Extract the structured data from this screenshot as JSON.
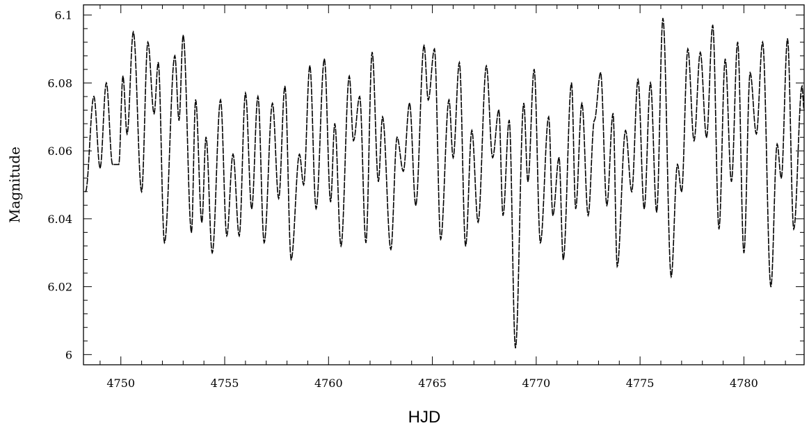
{
  "chart_data": {
    "type": "line",
    "title": "",
    "xlabel": "HJD",
    "ylabel": "Magnitude",
    "xlim": [
      4748.2,
      4782.9
    ],
    "ylim": [
      5.997,
      6.103
    ],
    "x_ticks": [
      4750,
      4755,
      4760,
      4765,
      4770,
      4775,
      4780
    ],
    "x_tick_labels": [
      "4750",
      "4755",
      "4760",
      "4765",
      "4770",
      "4775",
      "4780"
    ],
    "y_ticks": [
      6.0,
      6.02,
      6.04,
      6.06,
      6.08,
      6.1
    ],
    "y_tick_labels": [
      "6",
      "6.02",
      "6.04",
      "6.06",
      "6.08",
      "6.1"
    ],
    "grid": false,
    "series": [
      {
        "name": "",
        "color": "#000000",
        "points": [
          [
            4748.3,
            6.048
          ],
          [
            4748.7,
            6.076
          ],
          [
            4749.0,
            6.055
          ],
          [
            4749.3,
            6.08
          ],
          [
            4749.6,
            6.056
          ],
          [
            4749.9,
            6.056
          ],
          [
            4750.1,
            6.082
          ],
          [
            4750.3,
            6.065
          ],
          [
            4750.6,
            6.095
          ],
          [
            4751.0,
            6.048
          ],
          [
            4751.3,
            6.092
          ],
          [
            4751.6,
            6.071
          ],
          [
            4751.8,
            6.086
          ],
          [
            4752.1,
            6.033
          ],
          [
            4752.6,
            6.088
          ],
          [
            4752.8,
            6.069
          ],
          [
            4753.0,
            6.094
          ],
          [
            4753.4,
            6.036
          ],
          [
            4753.6,
            6.075
          ],
          [
            4753.9,
            6.039
          ],
          [
            4754.1,
            6.064
          ],
          [
            4754.4,
            6.03
          ],
          [
            4754.8,
            6.075
          ],
          [
            4755.1,
            6.035
          ],
          [
            4755.4,
            6.059
          ],
          [
            4755.7,
            6.035
          ],
          [
            4756.0,
            6.077
          ],
          [
            4756.3,
            6.043
          ],
          [
            4756.6,
            6.076
          ],
          [
            4756.9,
            6.033
          ],
          [
            4757.3,
            6.074
          ],
          [
            4757.6,
            6.046
          ],
          [
            4757.9,
            6.079
          ],
          [
            4758.2,
            6.028
          ],
          [
            4758.6,
            6.059
          ],
          [
            4758.8,
            6.05
          ],
          [
            4759.1,
            6.085
          ],
          [
            4759.4,
            6.043
          ],
          [
            4759.8,
            6.087
          ],
          [
            4760.1,
            6.045
          ],
          [
            4760.3,
            6.068
          ],
          [
            4760.6,
            6.032
          ],
          [
            4761.0,
            6.082
          ],
          [
            4761.2,
            6.063
          ],
          [
            4761.5,
            6.076
          ],
          [
            4761.8,
            6.033
          ],
          [
            4762.1,
            6.089
          ],
          [
            4762.4,
            6.051
          ],
          [
            4762.6,
            6.07
          ],
          [
            4763.0,
            6.031
          ],
          [
            4763.3,
            6.064
          ],
          [
            4763.6,
            6.054
          ],
          [
            4763.9,
            6.074
          ],
          [
            4764.2,
            6.044
          ],
          [
            4764.6,
            6.091
          ],
          [
            4764.8,
            6.075
          ],
          [
            4765.1,
            6.09
          ],
          [
            4765.4,
            6.034
          ],
          [
            4765.8,
            6.075
          ],
          [
            4766.0,
            6.058
          ],
          [
            4766.3,
            6.086
          ],
          [
            4766.6,
            6.032
          ],
          [
            4766.9,
            6.066
          ],
          [
            4767.2,
            6.039
          ],
          [
            4767.6,
            6.085
          ],
          [
            4767.9,
            6.058
          ],
          [
            4768.2,
            6.072
          ],
          [
            4768.4,
            6.041
          ],
          [
            4768.7,
            6.069
          ],
          [
            4769.0,
            6.002
          ],
          [
            4769.4,
            6.074
          ],
          [
            4769.6,
            6.051
          ],
          [
            4769.9,
            6.084
          ],
          [
            4770.2,
            6.033
          ],
          [
            4770.6,
            6.07
          ],
          [
            4770.8,
            6.041
          ],
          [
            4771.1,
            6.058
          ],
          [
            4771.3,
            6.028
          ],
          [
            4771.7,
            6.08
          ],
          [
            4771.9,
            6.043
          ],
          [
            4772.2,
            6.074
          ],
          [
            4772.5,
            6.041
          ],
          [
            4772.8,
            6.069
          ],
          [
            4773.1,
            6.083
          ],
          [
            4773.4,
            6.044
          ],
          [
            4773.7,
            6.071
          ],
          [
            4773.9,
            6.026
          ],
          [
            4774.3,
            6.066
          ],
          [
            4774.6,
            6.048
          ],
          [
            4774.9,
            6.081
          ],
          [
            4775.2,
            6.043
          ],
          [
            4775.5,
            6.08
          ],
          [
            4775.8,
            6.042
          ],
          [
            4776.1,
            6.099
          ],
          [
            4776.5,
            6.023
          ],
          [
            4776.8,
            6.056
          ],
          [
            4777.0,
            6.048
          ],
          [
            4777.3,
            6.09
          ],
          [
            4777.6,
            6.063
          ],
          [
            4777.9,
            6.089
          ],
          [
            4778.2,
            6.064
          ],
          [
            4778.5,
            6.097
          ],
          [
            4778.8,
            6.037
          ],
          [
            4779.1,
            6.087
          ],
          [
            4779.4,
            6.051
          ],
          [
            4779.7,
            6.092
          ],
          [
            4780.0,
            6.03
          ],
          [
            4780.3,
            6.083
          ],
          [
            4780.6,
            6.065
          ],
          [
            4780.9,
            6.092
          ],
          [
            4781.3,
            6.02
          ],
          [
            4781.6,
            6.062
          ],
          [
            4781.8,
            6.052
          ],
          [
            4782.1,
            6.093
          ],
          [
            4782.4,
            6.037
          ],
          [
            4782.8,
            6.079
          ],
          [
            4782.9,
            6.072
          ]
        ]
      }
    ]
  }
}
